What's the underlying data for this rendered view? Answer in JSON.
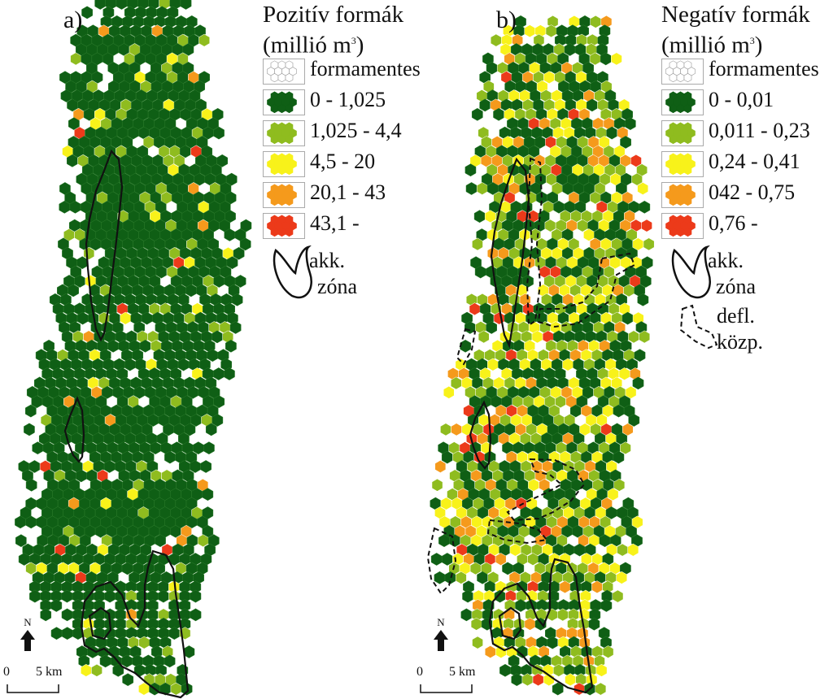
{
  "palette": {
    "class1": "#0f5f15",
    "class2": "#8fbc1f",
    "class3": "#f8f21a",
    "class4": "#f59a1c",
    "class5": "#ec3a1a",
    "empty": "#ffffff",
    "outline": "#111111"
  },
  "panels": [
    {
      "label": "a)",
      "legend": {
        "title_line1": "Pozitív formák",
        "title_line2": "(millió m",
        "title_sup": "3",
        "title_end": ")",
        "items": [
          {
            "swatch": "empty",
            "label": "formamentes"
          },
          {
            "swatch": "class1",
            "label": "0 - 1,025"
          },
          {
            "swatch": "class2",
            "label": "1,025 - 4,4"
          },
          {
            "swatch": "class3",
            "label": "4,5 - 20"
          },
          {
            "swatch": "class4",
            "label": "20,1 - 43"
          },
          {
            "swatch": "class5",
            "label": "43,1 -"
          }
        ],
        "zone_line1": "akk.",
        "zone_line2": "zóna"
      },
      "north": "N",
      "scale_zero": "0",
      "scale_label": "5 km"
    },
    {
      "label": "b)",
      "legend": {
        "title_line1": "Negatív formák",
        "title_line2": "(millió m",
        "title_sup": "3",
        "title_end": ")",
        "items": [
          {
            "swatch": "empty",
            "label": "formamentes"
          },
          {
            "swatch": "class1",
            "label": "0 - 0,01"
          },
          {
            "swatch": "class2",
            "label": "0,011 - 0,23"
          },
          {
            "swatch": "class3",
            "label": "0,24 - 0,41"
          },
          {
            "swatch": "class4",
            "label": "042 - 0,75"
          },
          {
            "swatch": "class5",
            "label": "0,76 -"
          }
        ],
        "zone_line1": "akk.",
        "zone_line2": "zóna",
        "defl_line1": "defl.",
        "defl_line2": "közp."
      },
      "north": "N",
      "scale_zero": "0",
      "scale_label": "5 km"
    }
  ]
}
